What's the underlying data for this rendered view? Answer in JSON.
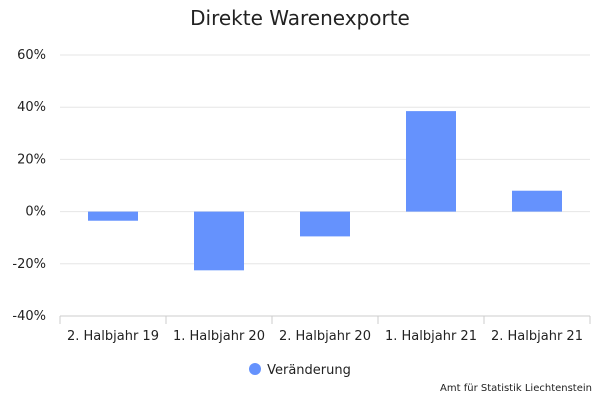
{
  "chart_data": {
    "type": "bar",
    "title": "Direkte Warenexporte",
    "categories": [
      "2. Halbjahr 19",
      "1. Halbjahr 20",
      "2. Halbjahr 20",
      "1. Halbjahr 21",
      "2. Halbjahr 21"
    ],
    "series": [
      {
        "name": "Veränderung",
        "values": [
          -3.5,
          -22.5,
          -9.5,
          38.5,
          8
        ],
        "color": "#6592fd"
      }
    ],
    "ylim": [
      -40,
      60
    ],
    "yticks": [
      -40,
      -20,
      0,
      20,
      40,
      60
    ],
    "ytick_labels": [
      "-40%",
      "-20%",
      "0%",
      "20%",
      "40%",
      "60%"
    ],
    "grid": true,
    "legend": "bottom",
    "source": "Amt für Statistik Liechtenstein"
  }
}
